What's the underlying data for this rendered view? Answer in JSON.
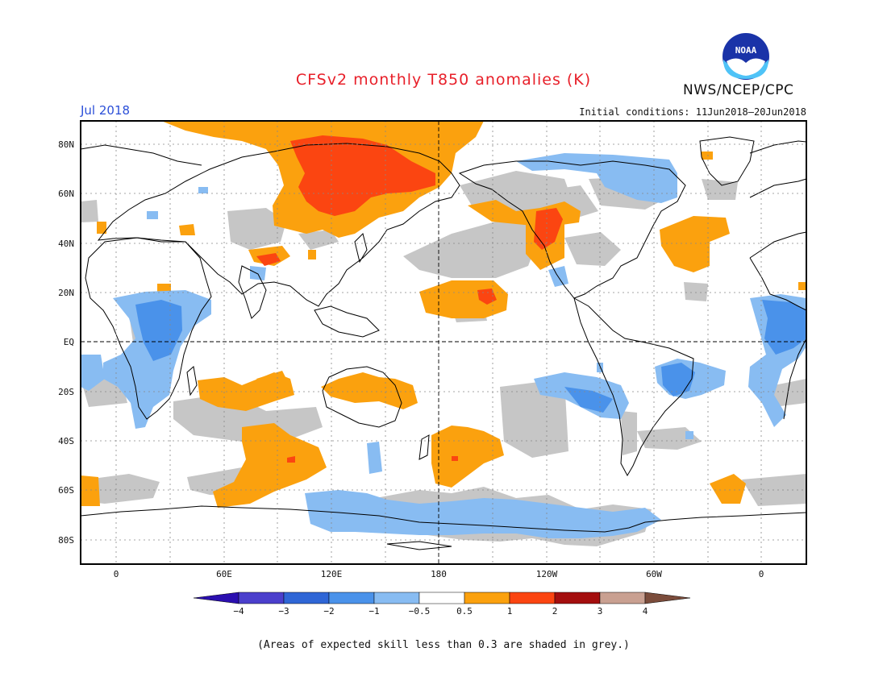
{
  "header": {
    "title": "CFSv2 monthly T850 anomalies (K)",
    "agency": "NWS/NCEP/CPC",
    "month": "Jul 2018",
    "initial_conditions": "Initial conditions: 11Jun2018–20Jun2018",
    "logo_text": "NOAA"
  },
  "map": {
    "lat_labels": [
      "80N",
      "60N",
      "40N",
      "20N",
      "EQ",
      "20S",
      "40S",
      "60S",
      "80S"
    ],
    "lon_labels": [
      "0",
      "60E",
      "120E",
      "180",
      "120W",
      "60W",
      "0"
    ]
  },
  "legend": {
    "labels": [
      "−4",
      "−3",
      "−2",
      "−1",
      "−0.5",
      "0.5",
      "1",
      "2",
      "3",
      "4"
    ],
    "colors": [
      "#2b0fb0",
      "#4b3fcc",
      "#2f66d6",
      "#4a92ea",
      "#88bcf2",
      "#ffffff",
      "#fba10e",
      "#fb4511",
      "#a40e0e",
      "#c9a091",
      "#7b4c3b"
    ]
  },
  "footnote": "(Areas of expected skill less than 0.3 are shaded in grey.)",
  "colors": {
    "grey": "#c6c6c6",
    "orange": "#fba10e",
    "red": "#fb4511",
    "lightblue": "#88bcf2",
    "blue": "#4a92ea"
  }
}
